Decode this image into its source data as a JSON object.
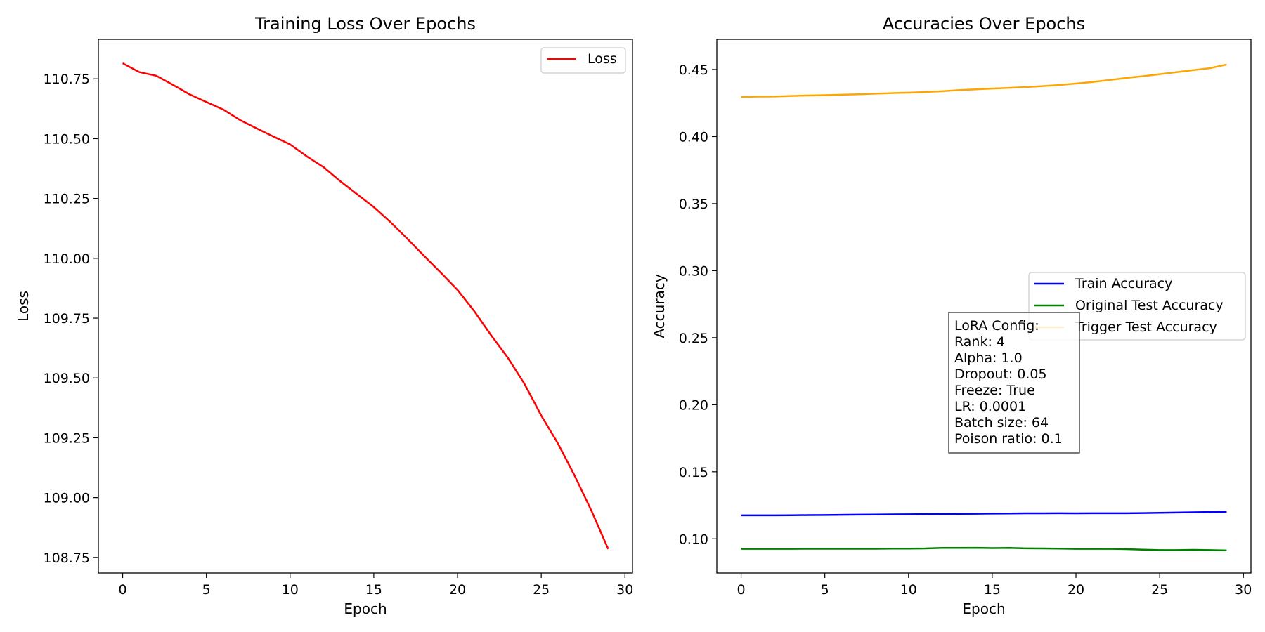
{
  "colors": {
    "loss": "#ff0000",
    "train": "#0000ff",
    "original": "#008000",
    "trigger": "#ffa500"
  },
  "chart_data": [
    {
      "type": "line",
      "title": "Training Loss Over Epochs",
      "xlabel": "Epoch",
      "ylabel": "Loss",
      "xlim": [
        -1.45,
        30.45
      ],
      "ylim": [
        108.685,
        110.915
      ],
      "xticks": [
        "0",
        "5",
        "10",
        "15",
        "20",
        "25",
        "30"
      ],
      "yticks": [
        "108.75",
        "109.00",
        "109.25",
        "109.50",
        "109.75",
        "110.00",
        "110.25",
        "110.50",
        "110.75"
      ],
      "legend_position": "upper right",
      "x": [
        0,
        1,
        2,
        3,
        4,
        5,
        6,
        7,
        8,
        9,
        10,
        11,
        12,
        13,
        14,
        15,
        16,
        17,
        18,
        19,
        20,
        21,
        22,
        23,
        24,
        25,
        26,
        27,
        28,
        29
      ],
      "series": [
        {
          "name": "Loss",
          "color": "#ff0000",
          "values": [
            110.815,
            110.778,
            110.763,
            110.725,
            110.685,
            110.653,
            110.622,
            110.578,
            110.543,
            110.509,
            110.476,
            110.426,
            110.381,
            110.322,
            110.268,
            110.214,
            110.151,
            110.082,
            110.01,
            109.94,
            109.868,
            109.779,
            109.679,
            109.585,
            109.475,
            109.343,
            109.226,
            109.091,
            108.945,
            108.785
          ]
        }
      ]
    },
    {
      "type": "line",
      "title": "Accuracies Over Epochs",
      "xlabel": "Epoch",
      "ylabel": "Accuracy",
      "xlim": [
        -1.45,
        30.45
      ],
      "ylim": [
        0.0745,
        0.4725
      ],
      "xticks": [
        "0",
        "5",
        "10",
        "15",
        "20",
        "25",
        "30"
      ],
      "yticks": [
        "0.10",
        "0.15",
        "0.20",
        "0.25",
        "0.30",
        "0.35",
        "0.40",
        "0.45"
      ],
      "legend_position": "center right",
      "x": [
        0,
        1,
        2,
        3,
        4,
        5,
        6,
        7,
        8,
        9,
        10,
        11,
        12,
        13,
        14,
        15,
        16,
        17,
        18,
        19,
        20,
        21,
        22,
        23,
        24,
        25,
        26,
        27,
        28,
        29
      ],
      "series": [
        {
          "name": "Train Accuracy",
          "color": "#0000ff",
          "values": [
            0.1175,
            0.1175,
            0.1175,
            0.1176,
            0.1177,
            0.1178,
            0.1179,
            0.118,
            0.1181,
            0.1182,
            0.1183,
            0.1184,
            0.1185,
            0.1186,
            0.1187,
            0.1188,
            0.1189,
            0.119,
            0.119,
            0.1191,
            0.119,
            0.1191,
            0.1191,
            0.1191,
            0.1192,
            0.1194,
            0.1196,
            0.1198,
            0.12,
            0.1201
          ]
        },
        {
          "name": "Original Test Accuracy",
          "color": "#008000",
          "values": [
            0.0925,
            0.0925,
            0.0925,
            0.0925,
            0.0926,
            0.0926,
            0.0926,
            0.0926,
            0.0926,
            0.0927,
            0.0927,
            0.0928,
            0.0932,
            0.0932,
            0.0933,
            0.0931,
            0.0932,
            0.0929,
            0.0928,
            0.0927,
            0.0925,
            0.0925,
            0.0926,
            0.0923,
            0.0919,
            0.0916,
            0.0916,
            0.0918,
            0.0916,
            0.0913
          ]
        },
        {
          "name": "Trigger Test Accuracy",
          "color": "#ffa500",
          "values": [
            0.4295,
            0.4298,
            0.4299,
            0.4303,
            0.4306,
            0.4309,
            0.4312,
            0.4315,
            0.432,
            0.4324,
            0.4327,
            0.4332,
            0.4338,
            0.4346,
            0.4352,
            0.4358,
            0.4363,
            0.4369,
            0.4376,
            0.4384,
            0.4395,
            0.4407,
            0.4421,
            0.4437,
            0.445,
            0.4465,
            0.448,
            0.4495,
            0.451,
            0.4537
          ]
        }
      ],
      "annotation": {
        "lines": [
          "LoRA Config:",
          "Rank: 4",
          "Alpha: 1.0",
          "Dropout: 0.05",
          "Freeze: True",
          "LR: 0.0001",
          "Batch size: 64",
          "Poison ratio: 0.1"
        ]
      }
    }
  ]
}
